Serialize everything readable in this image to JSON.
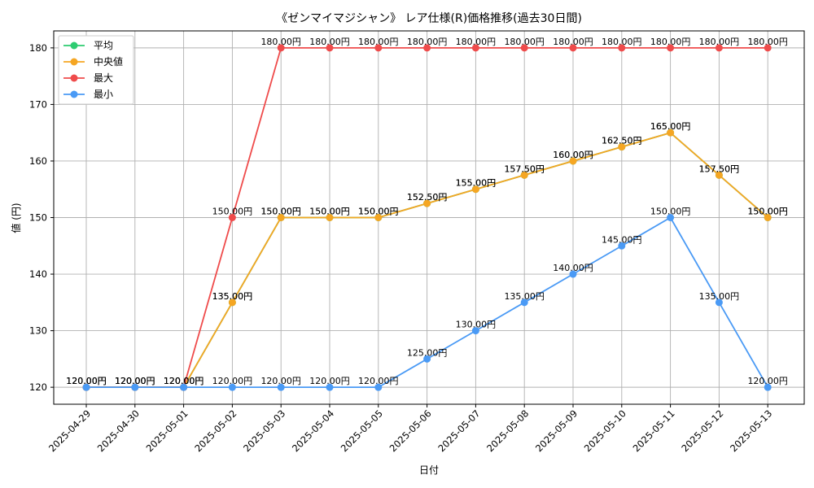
{
  "chart_data": {
    "type": "line",
    "title": "《ゼンマイマジシャン》 レア仕様(R)価格推移(過去30日間)",
    "xlabel": "日付",
    "ylabel": "値 (円)",
    "x": [
      "2025-04-29",
      "2025-04-30",
      "2025-05-01",
      "2025-05-02",
      "2025-05-03",
      "2025-05-04",
      "2025-05-05",
      "2025-05-06",
      "2025-05-07",
      "2025-05-08",
      "2025-05-09",
      "2025-05-10",
      "2025-05-11",
      "2025-05-12",
      "2025-05-13"
    ],
    "ylim": [
      117,
      183
    ],
    "yticks": [
      120,
      130,
      140,
      150,
      160,
      170,
      180
    ],
    "grid": true,
    "legend_position": "top-left",
    "value_suffix": "円",
    "series": [
      {
        "name": "平均",
        "color": "#2ecc71",
        "values": [
          120,
          120,
          120,
          135,
          150,
          150,
          150,
          152.5,
          155,
          157.5,
          160,
          162.5,
          165,
          157.5,
          150
        ]
      },
      {
        "name": "中央値",
        "color": "#f5a623",
        "values": [
          120,
          120,
          120,
          135,
          150,
          150,
          150,
          152.5,
          155,
          157.5,
          160,
          162.5,
          165,
          157.5,
          150
        ]
      },
      {
        "name": "最大",
        "color": "#ef4b4b",
        "values": [
          120,
          120,
          120,
          150,
          180,
          180,
          180,
          180,
          180,
          180,
          180,
          180,
          180,
          180,
          180
        ]
      },
      {
        "name": "最小",
        "color": "#4a9af5",
        "values": [
          120,
          120,
          120,
          120,
          120,
          120,
          120,
          125,
          130,
          135,
          140,
          145,
          150,
          135,
          120
        ]
      }
    ]
  }
}
